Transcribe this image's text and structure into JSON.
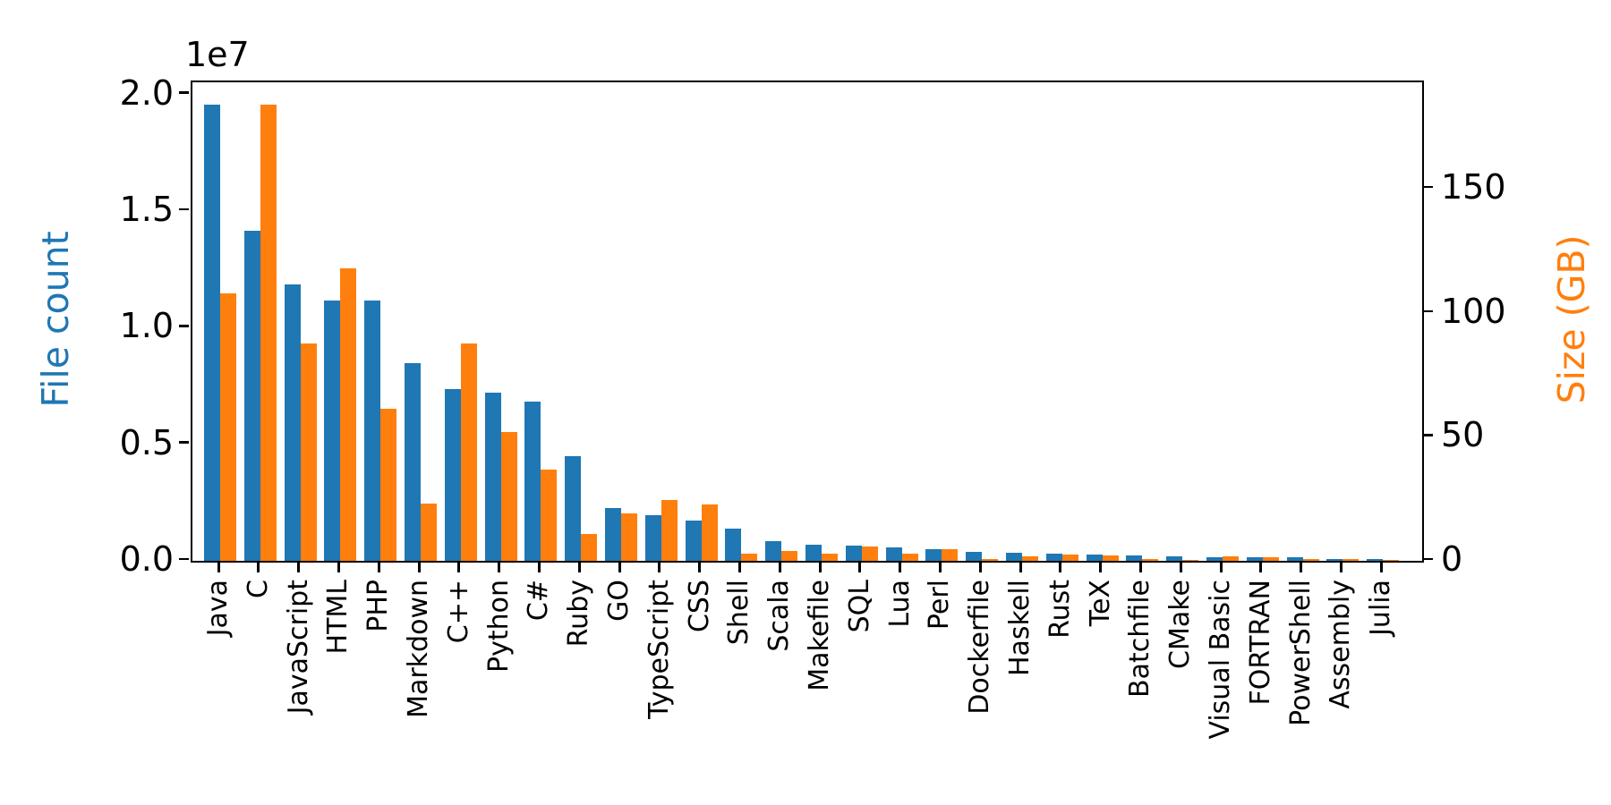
{
  "figure": {
    "background": "#ffffff",
    "offset_text": "1e7",
    "left_axis": {
      "label": "File count",
      "color": "#1f77b4",
      "tick_labels": [
        "0.0",
        "0.5",
        "1.0",
        "1.5",
        "2.0"
      ],
      "tick_values": [
        0,
        5000000,
        10000000,
        15000000,
        20000000
      ],
      "multiplier": "1e7"
    },
    "right_axis": {
      "label": "Size (GB)",
      "color": "#ff7f0e",
      "tick_labels": [
        "0",
        "50",
        "100",
        "150"
      ],
      "tick_values": [
        0,
        50,
        100,
        150
      ]
    }
  },
  "chart_data": {
    "type": "bar",
    "title": "",
    "xlabel": "",
    "ylabel": "File count",
    "ylabel_right": "Size (GB)",
    "grid": false,
    "legend": "none",
    "categories": [
      "Java",
      "C",
      "JavaScript",
      "HTML",
      "PHP",
      "Markdown",
      "C++",
      "Python",
      "C#",
      "Ruby",
      "GO",
      "TypeScript",
      "CSS",
      "Shell",
      "Scala",
      "Makefile",
      "SQL",
      "Lua",
      "Perl",
      "Dockerfile",
      "Haskell",
      "Rust",
      "TeX",
      "Batchfile",
      "CMake",
      "Visual Basic",
      "FORTRAN",
      "PowerShell",
      "Assembly",
      "Julia"
    ],
    "series": [
      {
        "name": "File count",
        "axis": "left",
        "color": "#1f77b4",
        "values": [
          19548190,
          14143113,
          11839883,
          11178557,
          11177610,
          8464626,
          7380520,
          7226626,
          6811652,
          4473331,
          2265436,
          1940406,
          1734406,
          1385648,
          835755,
          679430,
          656671,
          578554,
          497949,
          366505,
          340623,
          324038,
          251015,
          236945,
          175282,
          155652,
          142038,
          136846,
          82905,
          58317
        ]
      },
      {
        "name": "Size (GB)",
        "axis": "right",
        "color": "#ff7f0e",
        "values": [
          107.7,
          183.83,
          87.82,
          118.12,
          61.41,
          23.09,
          87.73,
          52.03,
          36.83,
          10.95,
          19.28,
          24.59,
          22.67,
          3.01,
          3.87,
          2.92,
          5.67,
          2.81,
          4.7,
          0.71,
          1.85,
          2.68,
          2.15,
          0.7,
          0.54,
          1.91,
          1.62,
          0.69,
          0.78,
          0.29
        ]
      }
    ],
    "ylim_left": [
      0,
      20525600
    ],
    "ylim_right": [
      0,
      193.02
    ]
  }
}
